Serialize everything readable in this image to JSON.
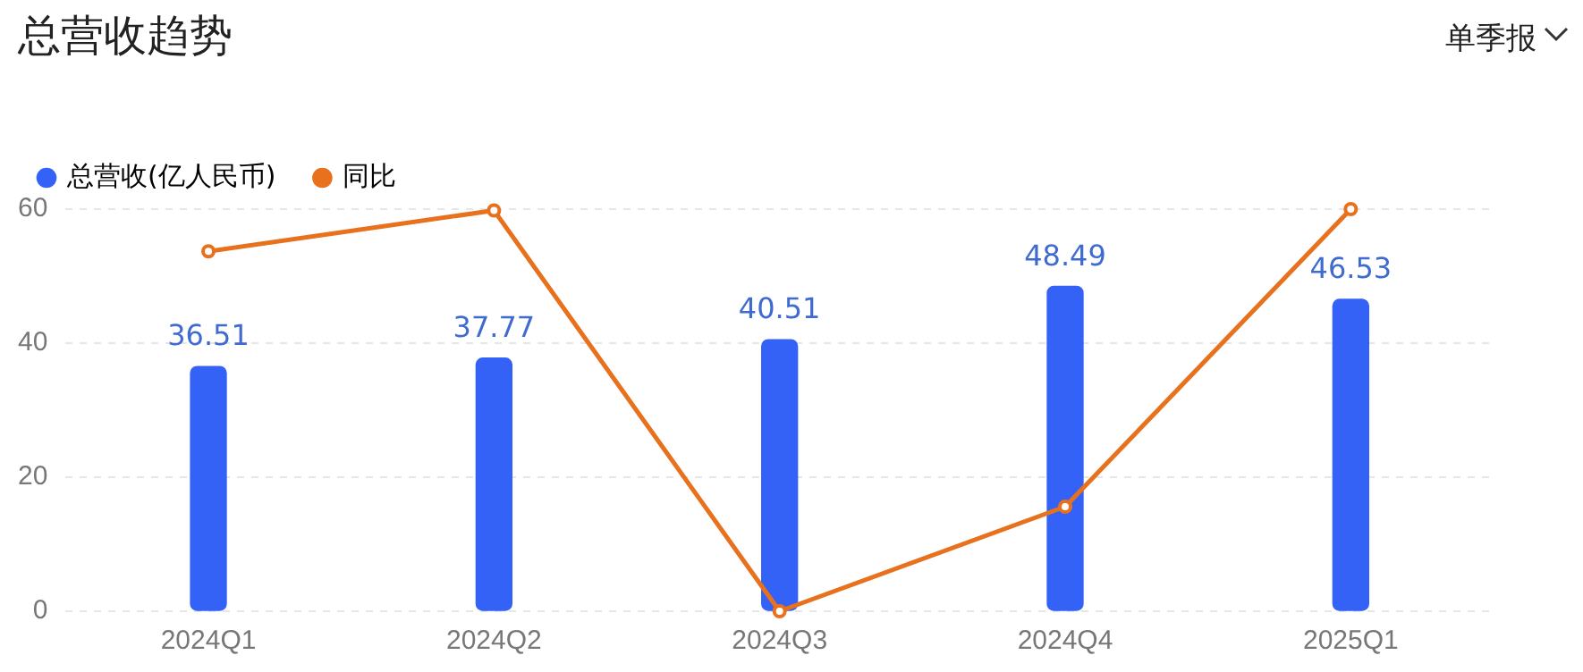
{
  "chart_data": {
    "type": "bar",
    "title": "总营收趋势",
    "annotations": [
      "单季报"
    ],
    "categories": [
      "2024Q1",
      "2024Q2",
      "2024Q3",
      "2024Q4",
      "2025Q1"
    ],
    "series": [
      {
        "name": "总营收(亿人民币)",
        "color": "#3461f6",
        "values": [
          36.51,
          37.77,
          40.51,
          48.49,
          46.53
        ],
        "value_labels": [
          "36.51",
          "37.77",
          "40.51",
          "48.49",
          "46.53"
        ]
      },
      {
        "name": "同比",
        "type": "line",
        "color": "#e8711e",
        "values": [
          53.7,
          59.8,
          0,
          15.6,
          60
        ]
      }
    ],
    "ylim": [
      0,
      60
    ],
    "yticks": [
      0,
      20,
      40,
      60
    ],
    "grid": "y",
    "legend": "top left",
    "marker": "circle",
    "line_style": "solid"
  }
}
